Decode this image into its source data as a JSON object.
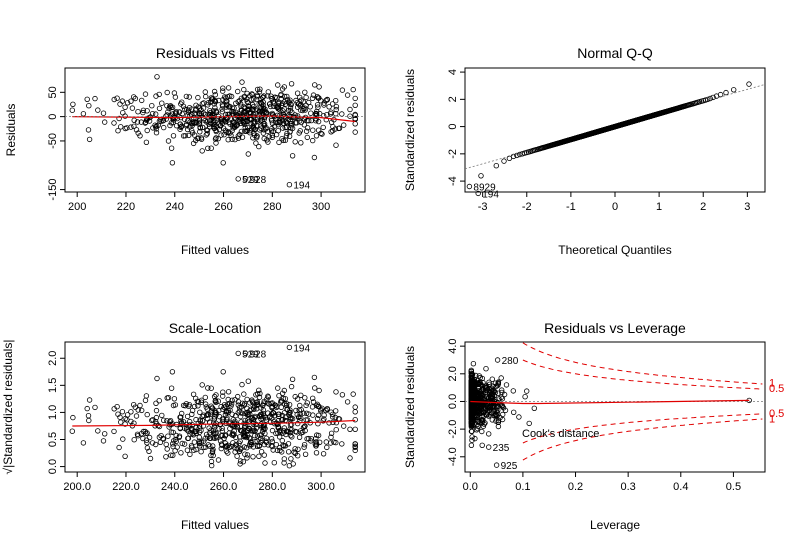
{
  "chart_data": [
    {
      "type": "scatter",
      "title": "Residuals vs Fitted",
      "xlabel": "Fitted values",
      "ylabel": "Residuals",
      "xlim": [
        195,
        318
      ],
      "ylim": [
        -155,
        100
      ],
      "xticks": [
        200,
        220,
        240,
        260,
        280,
        300
      ],
      "yticks": [
        -150,
        -50,
        0,
        50
      ],
      "smoother": [
        [
          198,
          0
        ],
        [
          220,
          -1
        ],
        [
          240,
          -2
        ],
        [
          260,
          0
        ],
        [
          280,
          1
        ],
        [
          300,
          -2
        ],
        [
          314,
          -10
        ]
      ],
      "outliers": [
        {
          "label": "529",
          "x": 266,
          "y": -128
        },
        {
          "label": "928",
          "x": 269,
          "y": -128
        },
        {
          "label": "194",
          "x": 287,
          "y": -140
        }
      ]
    },
    {
      "type": "scatter",
      "title": "Normal Q-Q",
      "xlabel": "Theoretical Quantiles",
      "ylabel": "Standardized residuals",
      "xlim": [
        -3.4,
        3.4
      ],
      "ylim": [
        -4.8,
        4.3
      ],
      "xticks": [
        -3,
        -2,
        -1,
        0,
        1,
        2,
        3
      ],
      "yticks": [
        -4,
        -2,
        0,
        2,
        4
      ],
      "reference_line": [
        [
          -3.4,
          -3.1
        ],
        [
          3.4,
          3.1
        ]
      ],
      "outliers": [
        {
          "label": "8929",
          "x": -3.3,
          "y": -4.4
        },
        {
          "label": "194",
          "x": -3.1,
          "y": -4.9
        }
      ]
    },
    {
      "type": "scatter",
      "title": "Scale-Location",
      "xlabel": "Fitted values",
      "ylabel": "√|Standardized residuals|",
      "xlim": [
        195,
        318
      ],
      "ylim": [
        -0.1,
        2.3
      ],
      "xticks": [
        200,
        220,
        240,
        260,
        280,
        300
      ],
      "yticks": [
        0.0,
        0.5,
        1.0,
        1.5,
        2.0
      ],
      "smoother": [
        [
          198,
          0.75
        ],
        [
          230,
          0.76
        ],
        [
          260,
          0.79
        ],
        [
          280,
          0.8
        ],
        [
          300,
          0.82
        ],
        [
          314,
          0.85
        ]
      ],
      "outliers": [
        {
          "label": "529",
          "x": 266,
          "y": 2.09
        },
        {
          "label": "928",
          "x": 269,
          "y": 2.09
        },
        {
          "label": "194",
          "x": 287,
          "y": 2.2
        }
      ]
    },
    {
      "type": "scatter",
      "title": "Residuals vs Leverage",
      "xlabel": "Leverage",
      "ylabel": "Standardized residuals",
      "xlim": [
        -0.01,
        0.56
      ],
      "ylim": [
        -5.1,
        4.3
      ],
      "xticks": [
        0.0,
        0.1,
        0.2,
        0.3,
        0.4,
        0.5
      ],
      "yticks": [
        -4,
        -2,
        0,
        2,
        4
      ],
      "smoother": [
        [
          0.0,
          0.0
        ],
        [
          0.05,
          -0.08
        ],
        [
          0.1,
          -0.15
        ],
        [
          0.13,
          -0.15
        ],
        [
          0.3,
          -0.05
        ],
        [
          0.53,
          0.08
        ]
      ],
      "outliers": [
        {
          "label": "280",
          "x": 0.052,
          "y": 3.0
        },
        {
          "label": "235",
          "x": 0.035,
          "y": -3.3
        },
        {
          "label": "925",
          "x": 0.05,
          "y": -4.6
        }
      ],
      "cooks_label": "Cook's distance",
      "cooks_contours": [
        {
          "level": "0.5",
          "k": 0.5,
          "label_sign": 1
        },
        {
          "level": "1",
          "k": 1,
          "label_sign": 1
        },
        {
          "level": "0.5",
          "k": 0.5,
          "label_sign": -1
        },
        {
          "level": "1",
          "k": 1,
          "label_sign": -1
        }
      ],
      "n_params": 2
    }
  ],
  "colors": {
    "points": "#000000",
    "smoother": "#e00000",
    "cooks": "#e00000",
    "reference": "#777777"
  }
}
